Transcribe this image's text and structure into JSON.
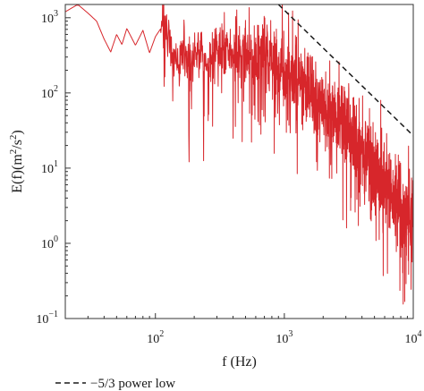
{
  "chart_data": {
    "type": "line",
    "title": "",
    "xlabel": "f (Hz)",
    "ylabel_parts": {
      "base": "E(f)(m",
      "sup1": "2",
      "mid": "/s",
      "sup2": "2",
      "end": ")"
    },
    "x_scale": "log",
    "y_scale": "log",
    "xlim": [
      20,
      10000
    ],
    "ylim": [
      0.1,
      1500
    ],
    "grid": false,
    "x_ticks": [
      {
        "value": 100,
        "base": "10",
        "exp": "2"
      },
      {
        "value": 1000,
        "base": "10",
        "exp": "3"
      },
      {
        "value": 10000,
        "base": "10",
        "exp": "4"
      }
    ],
    "y_ticks": [
      {
        "value": 0.1,
        "base": "10",
        "exp": "−1"
      },
      {
        "value": 1,
        "base": "10",
        "exp": "0"
      },
      {
        "value": 10,
        "base": "10",
        "exp": "1"
      },
      {
        "value": 100,
        "base": "10",
        "exp": "2"
      },
      {
        "value": 1000,
        "base": "10",
        "exp": "3"
      }
    ],
    "spectrum": {
      "color": "#d7262b",
      "anchors": [
        [
          20,
          1200
        ],
        [
          25,
          1500
        ],
        [
          30,
          1150
        ],
        [
          35,
          900
        ],
        [
          40,
          520
        ],
        [
          45,
          350
        ],
        [
          50,
          600
        ],
        [
          55,
          440
        ],
        [
          60,
          720
        ],
        [
          70,
          430
        ],
        [
          80,
          680
        ],
        [
          90,
          340
        ],
        [
          100,
          560
        ],
        [
          120,
          900
        ],
        [
          140,
          240
        ],
        [
          160,
          300
        ],
        [
          180,
          260
        ],
        [
          200,
          330
        ],
        [
          250,
          280
        ],
        [
          300,
          420
        ],
        [
          400,
          320
        ],
        [
          500,
          290
        ],
        [
          600,
          310
        ],
        [
          700,
          380
        ],
        [
          800,
          270
        ],
        [
          1000,
          180
        ],
        [
          1200,
          200
        ],
        [
          1500,
          120
        ],
        [
          2000,
          75
        ],
        [
          3000,
          34
        ],
        [
          4000,
          17
        ],
        [
          5000,
          9
        ],
        [
          6000,
          5.5
        ],
        [
          7000,
          4
        ],
        [
          8000,
          3
        ],
        [
          10000,
          2
        ]
      ],
      "n_points": 1500,
      "seed": 7
    },
    "reference_line": {
      "label": "−5/3 power low",
      "slope": -1.6667,
      "points": [
        [
          900,
          1500
        ],
        [
          10000,
          27
        ]
      ],
      "color": "#1a1a1a",
      "style": "dashed"
    },
    "legend": {
      "entries": [
        "−5/3 power low"
      ],
      "placement": "bottom-left"
    }
  }
}
